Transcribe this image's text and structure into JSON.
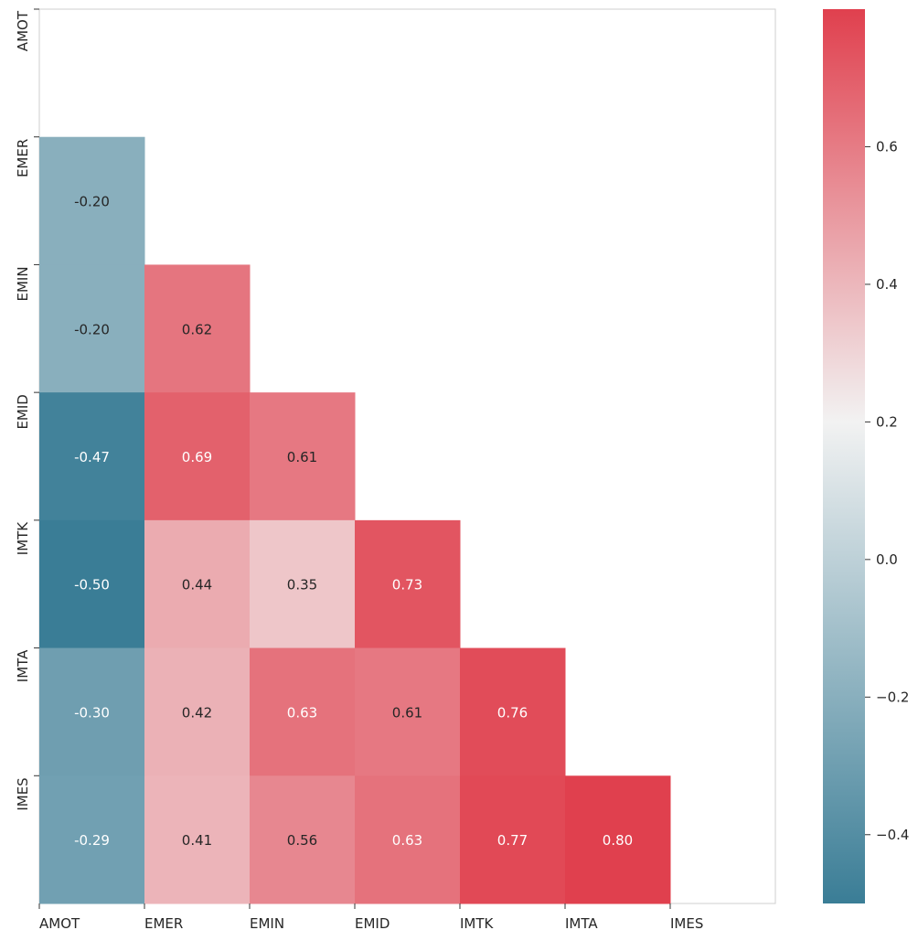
{
  "chart_data": {
    "type": "heatmap",
    "title": "",
    "xlabel": "",
    "ylabel": "",
    "x_labels": [
      "AMOT",
      "EMER",
      "EMIN",
      "EMID",
      "IMTK",
      "IMTA",
      "IMES"
    ],
    "y_labels": [
      "AMOT",
      "EMER",
      "EMIN",
      "EMID",
      "IMTK",
      "IMTA",
      "IMES"
    ],
    "mask": "upper-triangle-including-diagonal",
    "cells": [
      {
        "row": 1,
        "col": 0,
        "value": -0.2,
        "label": "-0.20"
      },
      {
        "row": 2,
        "col": 0,
        "value": -0.2,
        "label": "-0.20"
      },
      {
        "row": 2,
        "col": 1,
        "value": 0.62,
        "label": "0.62"
      },
      {
        "row": 3,
        "col": 0,
        "value": -0.47,
        "label": "-0.47"
      },
      {
        "row": 3,
        "col": 1,
        "value": 0.69,
        "label": "0.69"
      },
      {
        "row": 3,
        "col": 2,
        "value": 0.61,
        "label": "0.61"
      },
      {
        "row": 4,
        "col": 0,
        "value": -0.5,
        "label": "-0.50"
      },
      {
        "row": 4,
        "col": 1,
        "value": 0.44,
        "label": "0.44"
      },
      {
        "row": 4,
        "col": 2,
        "value": 0.35,
        "label": "0.35"
      },
      {
        "row": 4,
        "col": 3,
        "value": 0.73,
        "label": "0.73"
      },
      {
        "row": 5,
        "col": 0,
        "value": -0.3,
        "label": "-0.30"
      },
      {
        "row": 5,
        "col": 1,
        "value": 0.42,
        "label": "0.42"
      },
      {
        "row": 5,
        "col": 2,
        "value": 0.63,
        "label": "0.63"
      },
      {
        "row": 5,
        "col": 3,
        "value": 0.61,
        "label": "0.61"
      },
      {
        "row": 5,
        "col": 4,
        "value": 0.76,
        "label": "0.76"
      },
      {
        "row": 6,
        "col": 0,
        "value": -0.29,
        "label": "-0.29"
      },
      {
        "row": 6,
        "col": 1,
        "value": 0.41,
        "label": "0.41"
      },
      {
        "row": 6,
        "col": 2,
        "value": 0.56,
        "label": "0.56"
      },
      {
        "row": 6,
        "col": 3,
        "value": 0.63,
        "label": "0.63"
      },
      {
        "row": 6,
        "col": 4,
        "value": 0.77,
        "label": "0.77"
      },
      {
        "row": 6,
        "col": 5,
        "value": 0.8,
        "label": "0.80"
      }
    ],
    "colorbar": {
      "vmin": -0.5,
      "vmax": 0.8,
      "center": 0.2,
      "ticks": [
        -0.4,
        -0.2,
        0.0,
        0.2,
        0.4,
        0.6
      ],
      "tick_labels": [
        "−0.4",
        "−0.2",
        "0.0",
        "0.2",
        "0.4",
        "0.6"
      ],
      "colors": {
        "low": "#3a7d96",
        "mid": "#f2f2f2",
        "high": "#e0404e"
      }
    },
    "grid": false,
    "legend": "colorbar-right"
  }
}
